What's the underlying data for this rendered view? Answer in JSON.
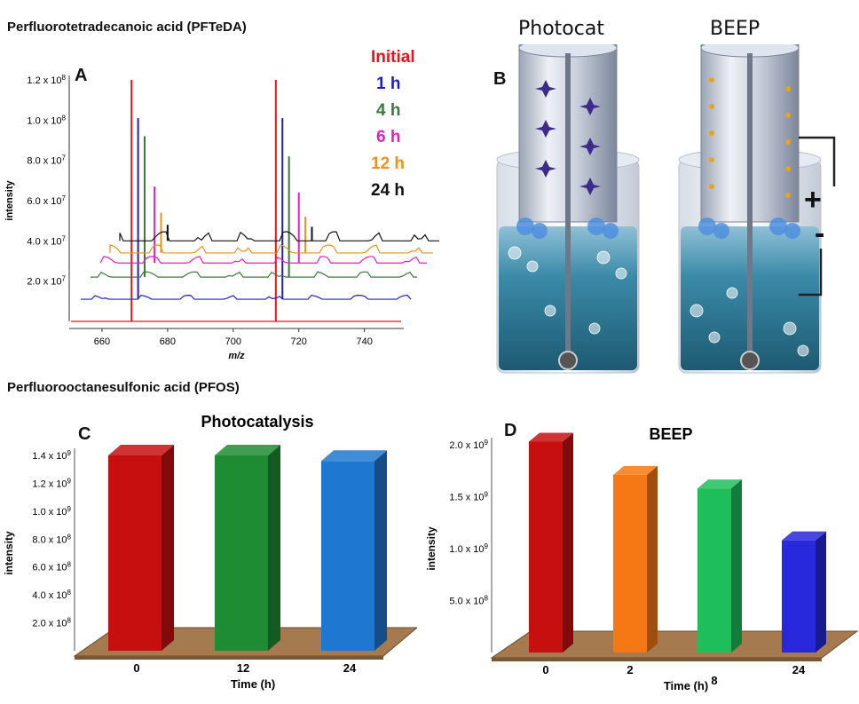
{
  "sections": {
    "top_title": "Perfluorotetradecanoic acid (PFTeDA)",
    "bottom_title": "Perfluorooctanesulfonic acid (PFOS)"
  },
  "panels": {
    "a": "A",
    "b": "B",
    "c": "C",
    "d": "D"
  },
  "diagram": {
    "left_label": "Photocat",
    "right_label": "BEEP",
    "plus": "+",
    "minus": "-"
  },
  "chart_data": [
    {
      "id": "A",
      "type": "line",
      "xlabel": "m/z",
      "ylabel": "intensity",
      "xlim": [
        650,
        752
      ],
      "ylim": [
        0,
        120000000
      ],
      "x_ticks": [
        "660",
        "680",
        "700",
        "720",
        "740"
      ],
      "y_ticks": [
        {
          "base": "2.0 x 10",
          "exp": "7"
        },
        {
          "base": "4.0 x 10",
          "exp": "7"
        },
        {
          "base": "6.0 x 10",
          "exp": "7"
        },
        {
          "base": "8.0 x 10",
          "exp": "7"
        },
        {
          "base": "1.0 x 10",
          "exp": "8"
        },
        {
          "base": "1.2 x 10",
          "exp": "8"
        }
      ],
      "legend_position": "top-right",
      "series": [
        {
          "name": "Initial",
          "color": "#e8141c",
          "offset": 0,
          "peaks": [
            [
              669,
              120000000
            ],
            [
              713,
              120000000
            ]
          ]
        },
        {
          "name": "1 h",
          "color": "#1f1fc8",
          "offset": 11000000,
          "peaks": [
            [
              671,
              90000000
            ],
            [
              715,
              90000000
            ]
          ]
        },
        {
          "name": "4 h",
          "color": "#3a7a3a",
          "offset": 22000000,
          "peaks": [
            [
              673,
              70000000
            ],
            [
              717,
              60000000
            ]
          ]
        },
        {
          "name": "6 h",
          "color": "#e81ec8",
          "offset": 29000000,
          "peaks": [
            [
              676,
              38000000
            ],
            [
              720,
              35000000
            ]
          ]
        },
        {
          "name": "12 h",
          "color": "#f0901a",
          "offset": 34000000,
          "peaks": [
            [
              678,
              20000000
            ],
            [
              722,
              18000000
            ]
          ]
        },
        {
          "name": "24 h",
          "color": "#111111",
          "offset": 40000000,
          "peaks": [
            [
              680,
              8000000
            ],
            [
              724,
              7000000
            ]
          ]
        }
      ]
    },
    {
      "id": "C",
      "type": "bar",
      "title": "Photocatalysis",
      "xlabel": "Time (h)",
      "ylabel": "intensity",
      "ylim": [
        0,
        1400000000
      ],
      "categories": [
        "0",
        "12",
        "24"
      ],
      "values": [
        1400000000,
        1400000000,
        1360000000
      ],
      "colors": [
        "#c80f0f",
        "#1e8c32",
        "#1e78d2"
      ],
      "y_ticks": [
        {
          "base": "2.0 x 10",
          "exp": "8"
        },
        {
          "base": "4.0 x 10",
          "exp": "8"
        },
        {
          "base": "6.0 x 10",
          "exp": "8"
        },
        {
          "base": "8.0 x 10",
          "exp": "8"
        },
        {
          "base": "1.0 x 10",
          "exp": "9"
        },
        {
          "base": "1.2 x 10",
          "exp": "9"
        },
        {
          "base": "1.4 x 10",
          "exp": "9"
        }
      ]
    },
    {
      "id": "D",
      "type": "bar",
      "title": "BEEP",
      "xlabel": "Time (h)",
      "ylabel": "intensity",
      "ylim": [
        0,
        2000000000
      ],
      "categories": [
        "0",
        "2",
        "8",
        "24"
      ],
      "values": [
        2030000000,
        1710000000,
        1580000000,
        1080000000
      ],
      "colors": [
        "#c80f0f",
        "#f57814",
        "#1ebe5a",
        "#2828dc"
      ],
      "y_ticks": [
        {
          "base": "5.0 x 10",
          "exp": "8"
        },
        {
          "base": "1.0 x 10",
          "exp": "9"
        },
        {
          "base": "1.5 x 10",
          "exp": "9"
        },
        {
          "base": "2.0 x 10",
          "exp": "9"
        }
      ]
    }
  ]
}
